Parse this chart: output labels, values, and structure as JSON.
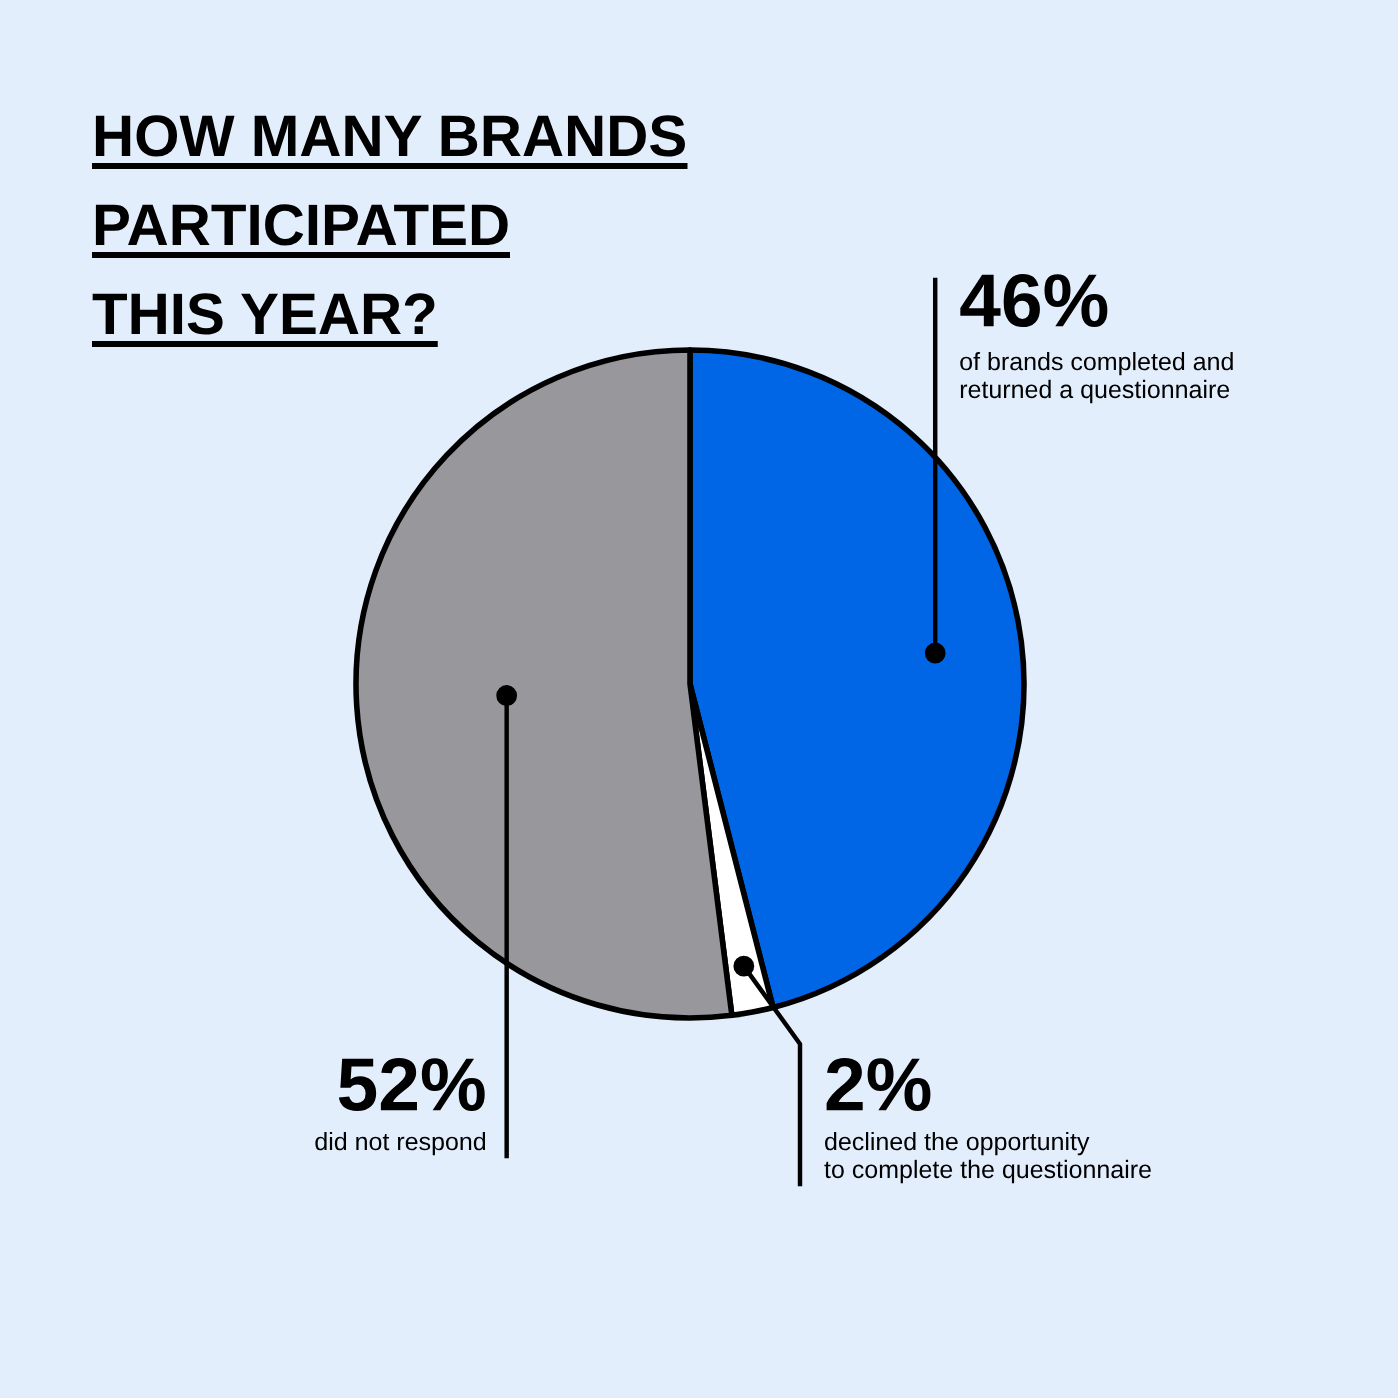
{
  "chart_data": {
    "type": "pie",
    "title": "HOW MANY BRANDS\nPARTICIPATED\nTHIS YEAR?",
    "categories": [
      "of brands completed and\nreturned a questionnaire",
      "declined the opportunity\nto complete the questionnaire",
      "did not respond"
    ],
    "values": [
      46,
      2,
      52
    ],
    "colors": [
      "#0066e6",
      "#ffffff",
      "#98989c"
    ],
    "value_labels": [
      "46%",
      "2%",
      "52%"
    ]
  }
}
